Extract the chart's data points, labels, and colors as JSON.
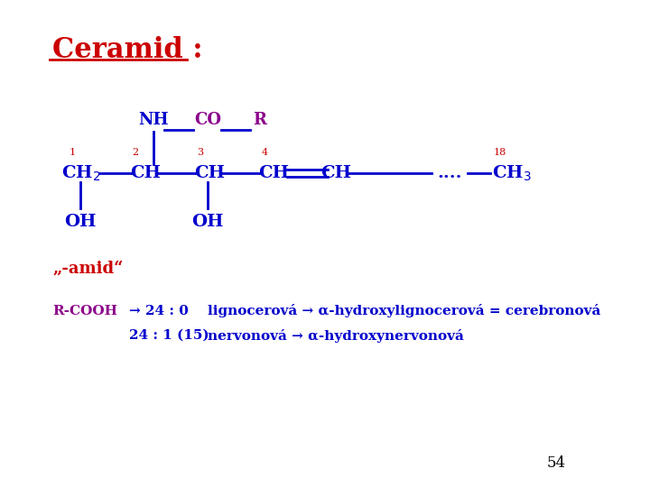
{
  "title": "Ceramid :",
  "title_color": "#CC0000",
  "title_fontsize": 22,
  "background_color": "#ffffff",
  "blue": "#0000CC",
  "purple": "#8B008B",
  "red": "#CC0000",
  "amid_text": "„-amid“",
  "page_number": "54",
  "line1_text1": "R-COOH",
  "line1_text2": "→ 24 : 0",
  "line1_text3": "lignocerová → α-hydroxylignocerová = cerebronová",
  "line2_text1": "24 : 1 (15)",
  "line2_text2": "nervonová → α-hydroxynervonová"
}
